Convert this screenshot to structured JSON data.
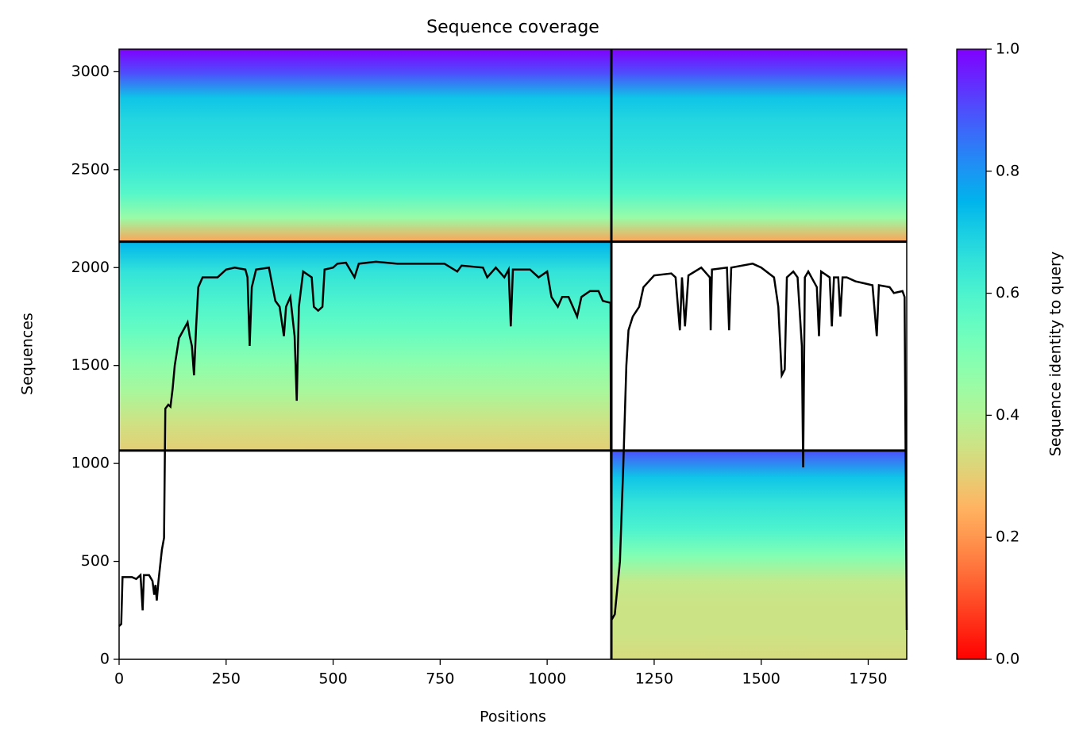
{
  "chart_data": {
    "type": "msa_coverage",
    "title": "Sequence coverage",
    "x_label": "Positions",
    "y_label": "Sequences",
    "colorbar_label": "Sequence identity to query",
    "colormap": "rainbow_r",
    "xlim": [
      0,
      1840
    ],
    "ylim": [
      0,
      3115
    ],
    "xticks": [
      0,
      250,
      500,
      750,
      1000,
      1250,
      1500,
      1750
    ],
    "yticks": [
      0,
      500,
      1000,
      1500,
      2000,
      2500,
      3000
    ],
    "clim": [
      0,
      1
    ],
    "cticks": [
      {
        "value": 0,
        "label": "0.0"
      },
      {
        "value": 0.2,
        "label": "0.2"
      },
      {
        "value": 0.4,
        "label": "0.4"
      },
      {
        "value": 0.6,
        "label": "0.6"
      },
      {
        "value": 0.8,
        "label": "0.8"
      },
      {
        "value": 1,
        "label": "1.0"
      }
    ],
    "separators": {
      "x": [
        1150
      ],
      "y": [
        1066,
        2132
      ]
    },
    "blocks": [
      {
        "x": [
          0,
          1150
        ],
        "y": [
          2132,
          3115
        ],
        "identity": [
          0.22,
          0.45,
          0.58,
          0.63,
          0.66,
          0.68,
          0.72,
          0.9,
          1.0
        ]
      },
      {
        "x": [
          1150,
          1840
        ],
        "y": [
          2132,
          3115
        ],
        "identity": [
          0.22,
          0.45,
          0.58,
          0.63,
          0.66,
          0.68,
          0.72,
          0.9,
          1.0
        ]
      },
      {
        "x": [
          0,
          1150
        ],
        "y": [
          1066,
          2132
        ],
        "identity": [
          0.3,
          0.35,
          0.42,
          0.48,
          0.55,
          0.6,
          0.65,
          0.75
        ]
      },
      {
        "x": [
          1150,
          1840
        ],
        "y": [
          0,
          1066
        ],
        "identity": [
          0.33,
          0.35,
          0.35,
          0.37,
          0.5,
          0.6,
          0.65,
          0.72,
          0.9
        ]
      }
    ],
    "coverage": {
      "x": [
        0,
        5,
        8,
        30,
        40,
        50,
        55,
        58,
        70,
        78,
        82,
        85,
        88,
        92,
        100,
        105,
        108,
        115,
        120,
        125,
        130,
        140,
        150,
        160,
        165,
        170,
        175,
        180,
        185,
        195,
        230,
        250,
        270,
        295,
        300,
        305,
        310,
        320,
        350,
        365,
        375,
        385,
        390,
        400,
        410,
        415,
        420,
        430,
        450,
        455,
        465,
        475,
        480,
        500,
        510,
        530,
        550,
        560,
        600,
        650,
        700,
        760,
        790,
        800,
        850,
        860,
        880,
        900,
        910,
        915,
        920,
        960,
        980,
        1000,
        1010,
        1025,
        1035,
        1050,
        1060,
        1070,
        1080,
        1100,
        1120,
        1130,
        1148,
        1150,
        1158,
        1170,
        1178,
        1185,
        1190,
        1200,
        1215,
        1225,
        1250,
        1290,
        1300,
        1310,
        1315,
        1322,
        1330,
        1360,
        1380,
        1382,
        1385,
        1420,
        1425,
        1430,
        1480,
        1500,
        1530,
        1540,
        1548,
        1555,
        1560,
        1575,
        1585,
        1595,
        1598,
        1602,
        1610,
        1630,
        1635,
        1640,
        1660,
        1665,
        1670,
        1680,
        1685,
        1690,
        1700,
        1720,
        1740,
        1760,
        1770,
        1775,
        1800,
        1810,
        1830,
        1835,
        1840
      ],
      "values": [
        170,
        180,
        420,
        420,
        410,
        430,
        250,
        430,
        430,
        400,
        330,
        380,
        300,
        400,
        560,
        620,
        1280,
        1300,
        1290,
        1380,
        1500,
        1640,
        1680,
        1720,
        1650,
        1600,
        1450,
        1700,
        1900,
        1950,
        1950,
        1990,
        2000,
        1990,
        1950,
        1600,
        1900,
        1990,
        2000,
        1830,
        1800,
        1650,
        1800,
        1850,
        1650,
        1320,
        1800,
        1980,
        1950,
        1800,
        1780,
        1800,
        1990,
        2000,
        2020,
        2025,
        1950,
        2020,
        2030,
        2020,
        2020,
        2020,
        1980,
        2010,
        2000,
        1950,
        2000,
        1950,
        1990,
        1700,
        1990,
        1990,
        1950,
        1980,
        1850,
        1800,
        1850,
        1850,
        1800,
        1750,
        1850,
        1880,
        1880,
        1830,
        1820,
        200,
        230,
        500,
        1000,
        1500,
        1680,
        1750,
        1800,
        1900,
        1960,
        1970,
        1950,
        1680,
        1950,
        1700,
        1960,
        2000,
        1950,
        1680,
        1990,
        2000,
        1680,
        2000,
        2020,
        2000,
        1950,
        1800,
        1450,
        1480,
        1950,
        1980,
        1950,
        1600,
        980,
        1950,
        1980,
        1900,
        1650,
        1980,
        1950,
        1700,
        1950,
        1950,
        1750,
        1950,
        1950,
        1930,
        1920,
        1910,
        1650,
        1910,
        1900,
        1870,
        1880,
        1850,
        150
      ]
    }
  }
}
